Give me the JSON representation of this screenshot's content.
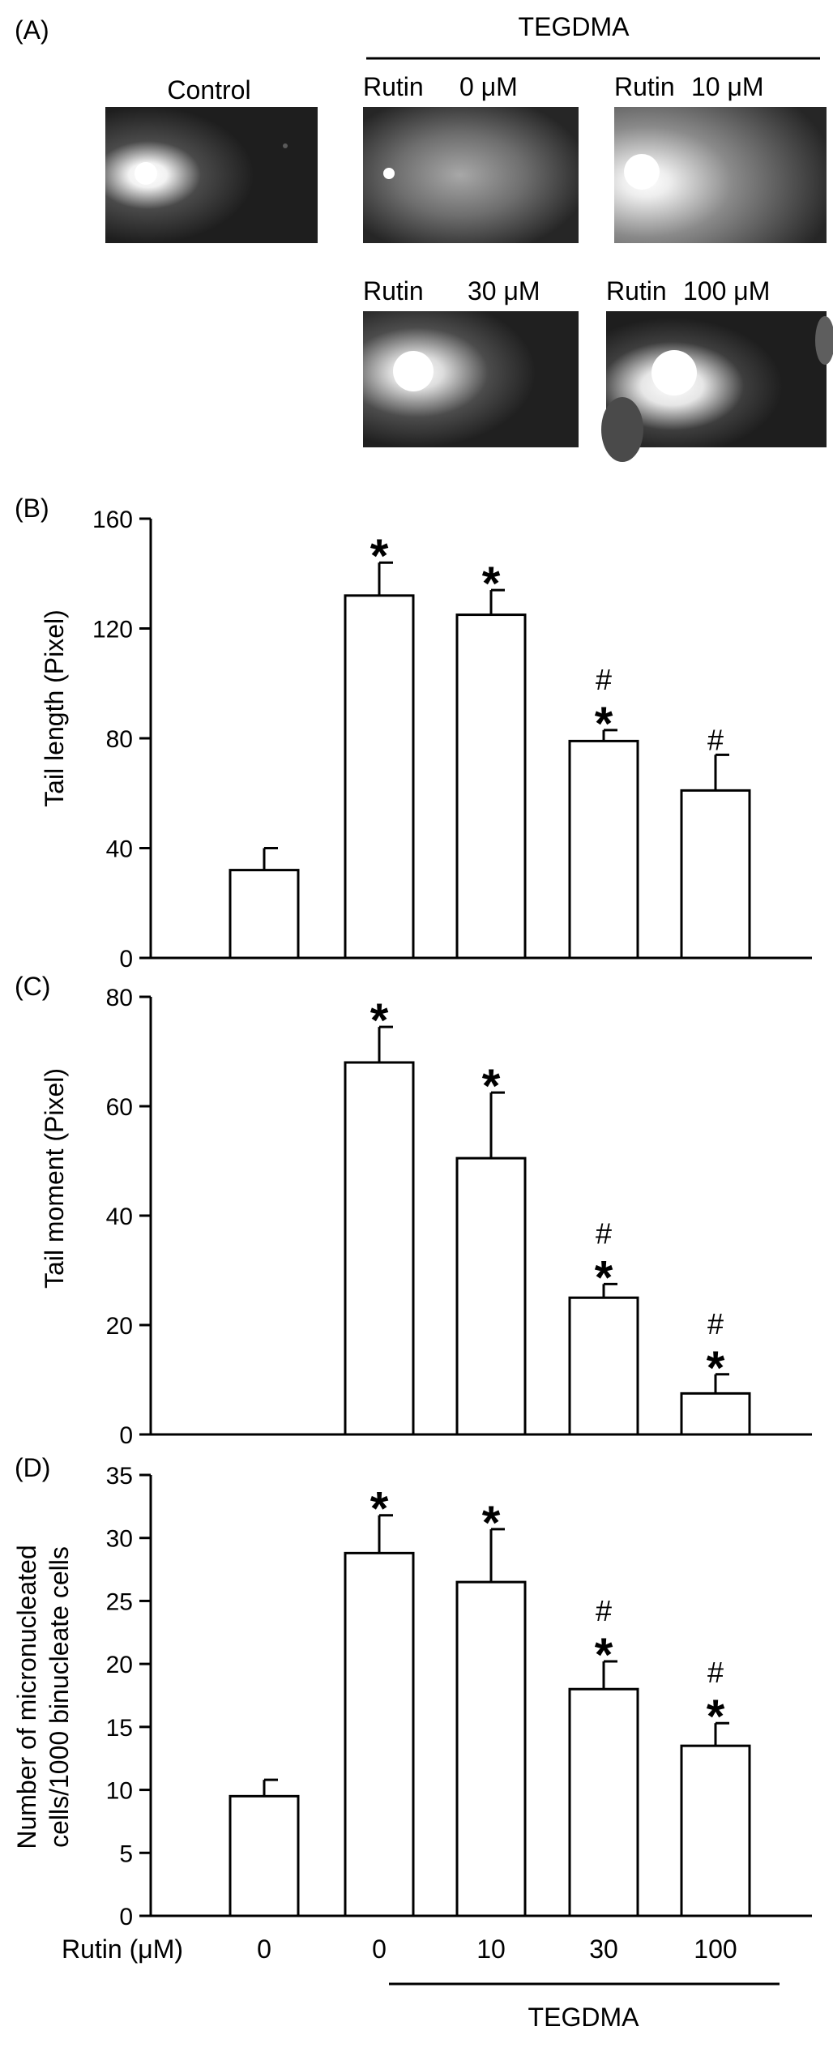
{
  "panel_a": {
    "label": "(A)",
    "treatment_label": "TEGDMA",
    "images": [
      {
        "caption": "Control",
        "cometType": "control"
      },
      {
        "caption_name": "Rutin",
        "caption_dose": "0 μM",
        "cometType": "diffuse"
      },
      {
        "caption_name": "Rutin",
        "caption_dose": "10 μM",
        "cometType": "bright"
      },
      {
        "caption_name": "Rutin",
        "caption_dose": "30 μM",
        "cometType": "medium"
      },
      {
        "caption_name": "Rutin",
        "caption_dose": "100 μM",
        "cometType": "tight"
      }
    ]
  },
  "chart_data": [
    {
      "panel": "(B)",
      "type": "bar",
      "ylabel": "Tail length (Pixel)",
      "ylim": [
        0,
        160
      ],
      "yticks": [
        0,
        40,
        80,
        120,
        160
      ],
      "categories": [
        "0",
        "0",
        "10",
        "30",
        "100"
      ],
      "values": [
        32,
        132,
        125,
        79,
        61
      ],
      "errors": [
        8,
        12,
        9,
        4,
        13
      ],
      "annotations": [
        [],
        [
          "*"
        ],
        [
          "*"
        ],
        [
          "#",
          "*"
        ],
        [
          "#"
        ]
      ]
    },
    {
      "panel": "(C)",
      "type": "bar",
      "ylabel": "Tail moment (Pixel)",
      "ylim": [
        0,
        80
      ],
      "yticks": [
        0,
        20,
        40,
        60,
        80
      ],
      "categories": [
        "0",
        "0",
        "10",
        "30",
        "100"
      ],
      "values": [
        0,
        68,
        50.5,
        25,
        7.5
      ],
      "errors": [
        0,
        6.5,
        12,
        2.5,
        3.5
      ],
      "annotations": [
        [],
        [
          "*"
        ],
        [
          "*"
        ],
        [
          "#",
          "*"
        ],
        [
          "#",
          "*"
        ]
      ]
    },
    {
      "panel": "(D)",
      "type": "bar",
      "ylabel_lines": [
        "Number of micronucleated",
        "cells/1000 binucleate cells"
      ],
      "ylim": [
        0,
        35
      ],
      "yticks": [
        0,
        5,
        10,
        15,
        20,
        25,
        30,
        35
      ],
      "categories": [
        "0",
        "0",
        "10",
        "30",
        "100"
      ],
      "values": [
        9.5,
        28.8,
        26.5,
        18,
        13.5
      ],
      "errors": [
        1.3,
        3,
        4.2,
        2.2,
        1.8
      ],
      "annotations": [
        [],
        [
          "*"
        ],
        [
          "*"
        ],
        [
          "#",
          "*"
        ],
        [
          "#",
          "*"
        ]
      ]
    }
  ],
  "x_axis": {
    "row_label": "Rutin (μM)",
    "categories": [
      "0",
      "0",
      "10",
      "30",
      "100"
    ],
    "treatment_label": "TEGDMA"
  },
  "colors": {
    "bar_fill": "#ffffff",
    "stroke": "#000000",
    "image_bg": "#1e1e1e"
  }
}
